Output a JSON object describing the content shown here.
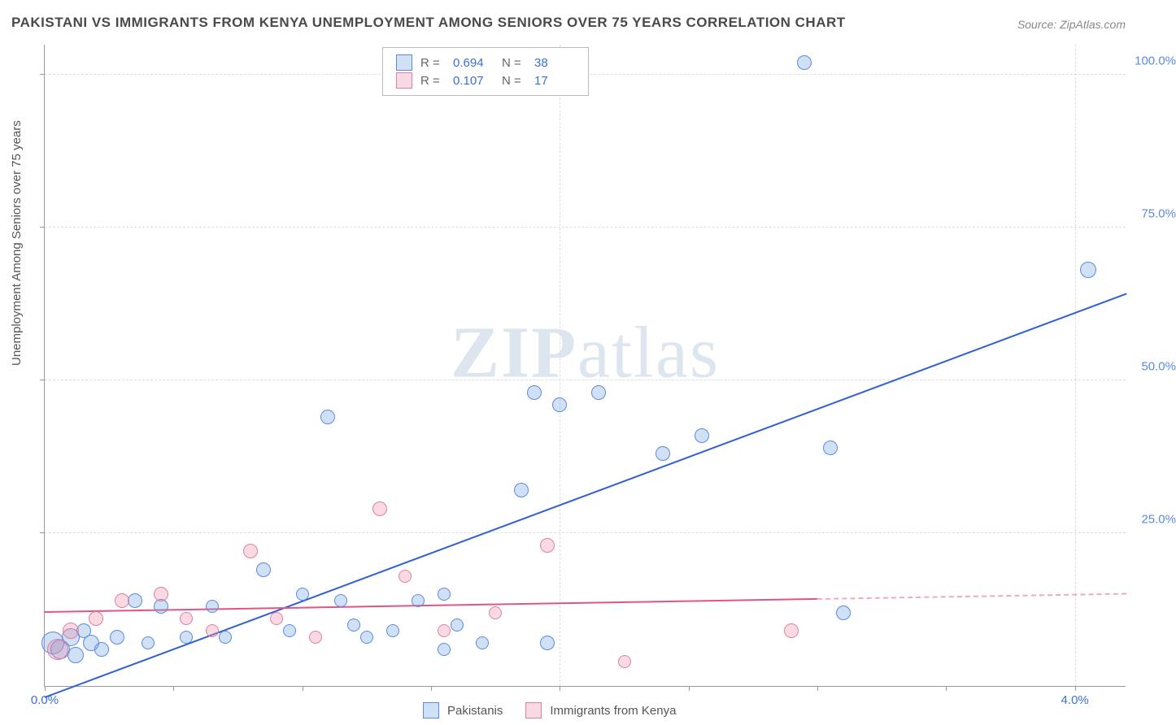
{
  "title": "PAKISTANI VS IMMIGRANTS FROM KENYA UNEMPLOYMENT AMONG SENIORS OVER 75 YEARS CORRELATION CHART",
  "source": "Source: ZipAtlas.com",
  "ylabel": "Unemployment Among Seniors over 75 years",
  "watermark_a": "ZIP",
  "watermark_b": "atlas",
  "chart": {
    "type": "scatter",
    "xlim": [
      0,
      4.2
    ],
    "ylim": [
      0,
      105
    ],
    "xticks": [
      {
        "v": 0.0,
        "label": "0.0%"
      },
      {
        "v": 2.0,
        "label": ""
      },
      {
        "v": 4.0,
        "label": "4.0%"
      }
    ],
    "xminor": [
      0.5,
      1.0,
      1.5,
      2.5,
      3.0,
      3.5
    ],
    "yticks": [
      {
        "v": 25,
        "label": "25.0%"
      },
      {
        "v": 50,
        "label": "50.0%"
      },
      {
        "v": 75,
        "label": "75.0%"
      },
      {
        "v": 100,
        "label": "100.0%"
      }
    ],
    "background_color": "#ffffff",
    "grid_color": "#dddddd",
    "tick_color_x": "#3b6fd6",
    "tick_color_y": "#5b8ae0",
    "series": [
      {
        "name": "Pakistanis",
        "legend_label": "Pakistanis",
        "fill": "rgba(120,165,225,0.35)",
        "stroke": "#5b8ae0",
        "R": "0.694",
        "N": "38",
        "trend": {
          "x1": 0.0,
          "y1": -2,
          "x2": 4.2,
          "y2": 64,
          "color": "#2f5fd0",
          "dash_from": null
        },
        "points": [
          {
            "x": 0.03,
            "y": 7,
            "r": 14
          },
          {
            "x": 0.06,
            "y": 6,
            "r": 12
          },
          {
            "x": 0.1,
            "y": 8,
            "r": 11
          },
          {
            "x": 0.12,
            "y": 5,
            "r": 10
          },
          {
            "x": 0.15,
            "y": 9,
            "r": 9
          },
          {
            "x": 0.18,
            "y": 7,
            "r": 10
          },
          {
            "x": 0.22,
            "y": 6,
            "r": 9
          },
          {
            "x": 0.28,
            "y": 8,
            "r": 9
          },
          {
            "x": 0.35,
            "y": 14,
            "r": 9
          },
          {
            "x": 0.4,
            "y": 7,
            "r": 8
          },
          {
            "x": 0.45,
            "y": 13,
            "r": 9
          },
          {
            "x": 0.55,
            "y": 8,
            "r": 8
          },
          {
            "x": 0.65,
            "y": 13,
            "r": 8
          },
          {
            "x": 0.7,
            "y": 8,
            "r": 8
          },
          {
            "x": 0.85,
            "y": 19,
            "r": 9
          },
          {
            "x": 0.95,
            "y": 9,
            "r": 8
          },
          {
            "x": 1.0,
            "y": 15,
            "r": 8
          },
          {
            "x": 1.1,
            "y": 44,
            "r": 9
          },
          {
            "x": 1.15,
            "y": 14,
            "r": 8
          },
          {
            "x": 1.2,
            "y": 10,
            "r": 8
          },
          {
            "x": 1.25,
            "y": 8,
            "r": 8
          },
          {
            "x": 1.35,
            "y": 9,
            "r": 8
          },
          {
            "x": 1.45,
            "y": 14,
            "r": 8
          },
          {
            "x": 1.55,
            "y": 15,
            "r": 8
          },
          {
            "x": 1.6,
            "y": 10,
            "r": 8
          },
          {
            "x": 1.55,
            "y": 6,
            "r": 8
          },
          {
            "x": 1.7,
            "y": 7,
            "r": 8
          },
          {
            "x": 1.85,
            "y": 32,
            "r": 9
          },
          {
            "x": 1.9,
            "y": 48,
            "r": 9
          },
          {
            "x": 1.95,
            "y": 7,
            "r": 9
          },
          {
            "x": 2.0,
            "y": 46,
            "r": 9
          },
          {
            "x": 2.15,
            "y": 48,
            "r": 9
          },
          {
            "x": 2.4,
            "y": 38,
            "r": 9
          },
          {
            "x": 2.55,
            "y": 41,
            "r": 9
          },
          {
            "x": 2.95,
            "y": 102,
            "r": 9
          },
          {
            "x": 3.05,
            "y": 39,
            "r": 9
          },
          {
            "x": 3.1,
            "y": 12,
            "r": 9
          },
          {
            "x": 4.05,
            "y": 68,
            "r": 10
          }
        ]
      },
      {
        "name": "Immigrants from Kenya",
        "legend_label": "Immigrants from Kenya",
        "fill": "rgba(235,140,165,0.32)",
        "stroke": "#e07fa0",
        "R": "0.107",
        "N": "17",
        "trend": {
          "x1": 0.0,
          "y1": 12,
          "x2": 4.2,
          "y2": 15,
          "color": "#e05585",
          "dash_from": 3.0
        },
        "points": [
          {
            "x": 0.05,
            "y": 6,
            "r": 13
          },
          {
            "x": 0.1,
            "y": 9,
            "r": 10
          },
          {
            "x": 0.2,
            "y": 11,
            "r": 9
          },
          {
            "x": 0.3,
            "y": 14,
            "r": 9
          },
          {
            "x": 0.45,
            "y": 15,
            "r": 9
          },
          {
            "x": 0.55,
            "y": 11,
            "r": 8
          },
          {
            "x": 0.65,
            "y": 9,
            "r": 8
          },
          {
            "x": 0.8,
            "y": 22,
            "r": 9
          },
          {
            "x": 0.9,
            "y": 11,
            "r": 8
          },
          {
            "x": 1.05,
            "y": 8,
            "r": 8
          },
          {
            "x": 1.3,
            "y": 29,
            "r": 9
          },
          {
            "x": 1.4,
            "y": 18,
            "r": 8
          },
          {
            "x": 1.55,
            "y": 9,
            "r": 8
          },
          {
            "x": 1.75,
            "y": 12,
            "r": 8
          },
          {
            "x": 1.95,
            "y": 23,
            "r": 9
          },
          {
            "x": 2.25,
            "y": 4,
            "r": 8
          },
          {
            "x": 2.9,
            "y": 9,
            "r": 9
          }
        ]
      }
    ]
  },
  "legend_top": {
    "r_label": "R =",
    "n_label": "N =",
    "value_color": "#3b6fd6"
  }
}
